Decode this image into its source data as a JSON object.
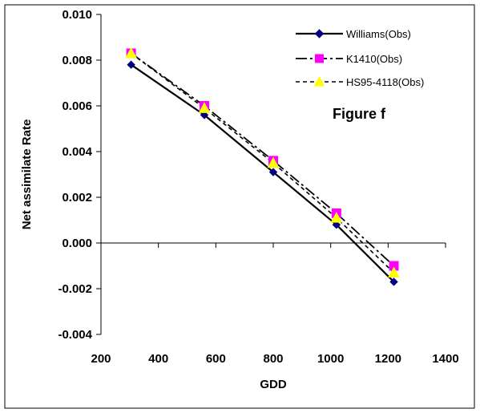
{
  "chart_data": {
    "type": "line",
    "title": "",
    "annotation": "Figure f",
    "xlabel": "GDD",
    "ylabel": "Net assimilate Rate",
    "xlim": [
      200,
      1400
    ],
    "ylim": [
      -0.004,
      0.01
    ],
    "x_ticks": [
      "200",
      "400",
      "600",
      "800",
      "1000",
      "1200",
      "1400"
    ],
    "y_ticks": [
      "-0.004",
      "-0.002",
      "0.000",
      "0.002",
      "0.004",
      "0.006",
      "0.008",
      "0.010"
    ],
    "x_tick_values": [
      200,
      400,
      600,
      800,
      1000,
      1200,
      1400
    ],
    "y_tick_values": [
      -0.004,
      -0.002,
      0.0,
      0.002,
      0.004,
      0.006,
      0.008,
      0.01
    ],
    "grid": false,
    "legend_position": "top-right",
    "series": [
      {
        "name": "Williams(Obs)",
        "color": "#000080",
        "line_color": "#000000",
        "marker": "diamond",
        "line_style": "solid",
        "x": [
          305,
          560,
          800,
          1020,
          1220
        ],
        "y": [
          0.0078,
          0.0056,
          0.0031,
          0.0008,
          -0.0017
        ]
      },
      {
        "name": "K1410(Obs)",
        "color": "#ff00ff",
        "line_color": "#000000",
        "marker": "square",
        "line_style": "longdash",
        "x": [
          305,
          560,
          800,
          1020,
          1220
        ],
        "y": [
          0.0083,
          0.006,
          0.0036,
          0.0013,
          -0.001
        ]
      },
      {
        "name": "HS95-4118(Obs)",
        "color": "#ffff00",
        "line_color": "#000000",
        "marker": "triangle",
        "line_style": "dash",
        "x": [
          305,
          560,
          800,
          1020,
          1220
        ],
        "y": [
          0.0083,
          0.0059,
          0.0035,
          0.0011,
          -0.0013
        ]
      }
    ]
  }
}
